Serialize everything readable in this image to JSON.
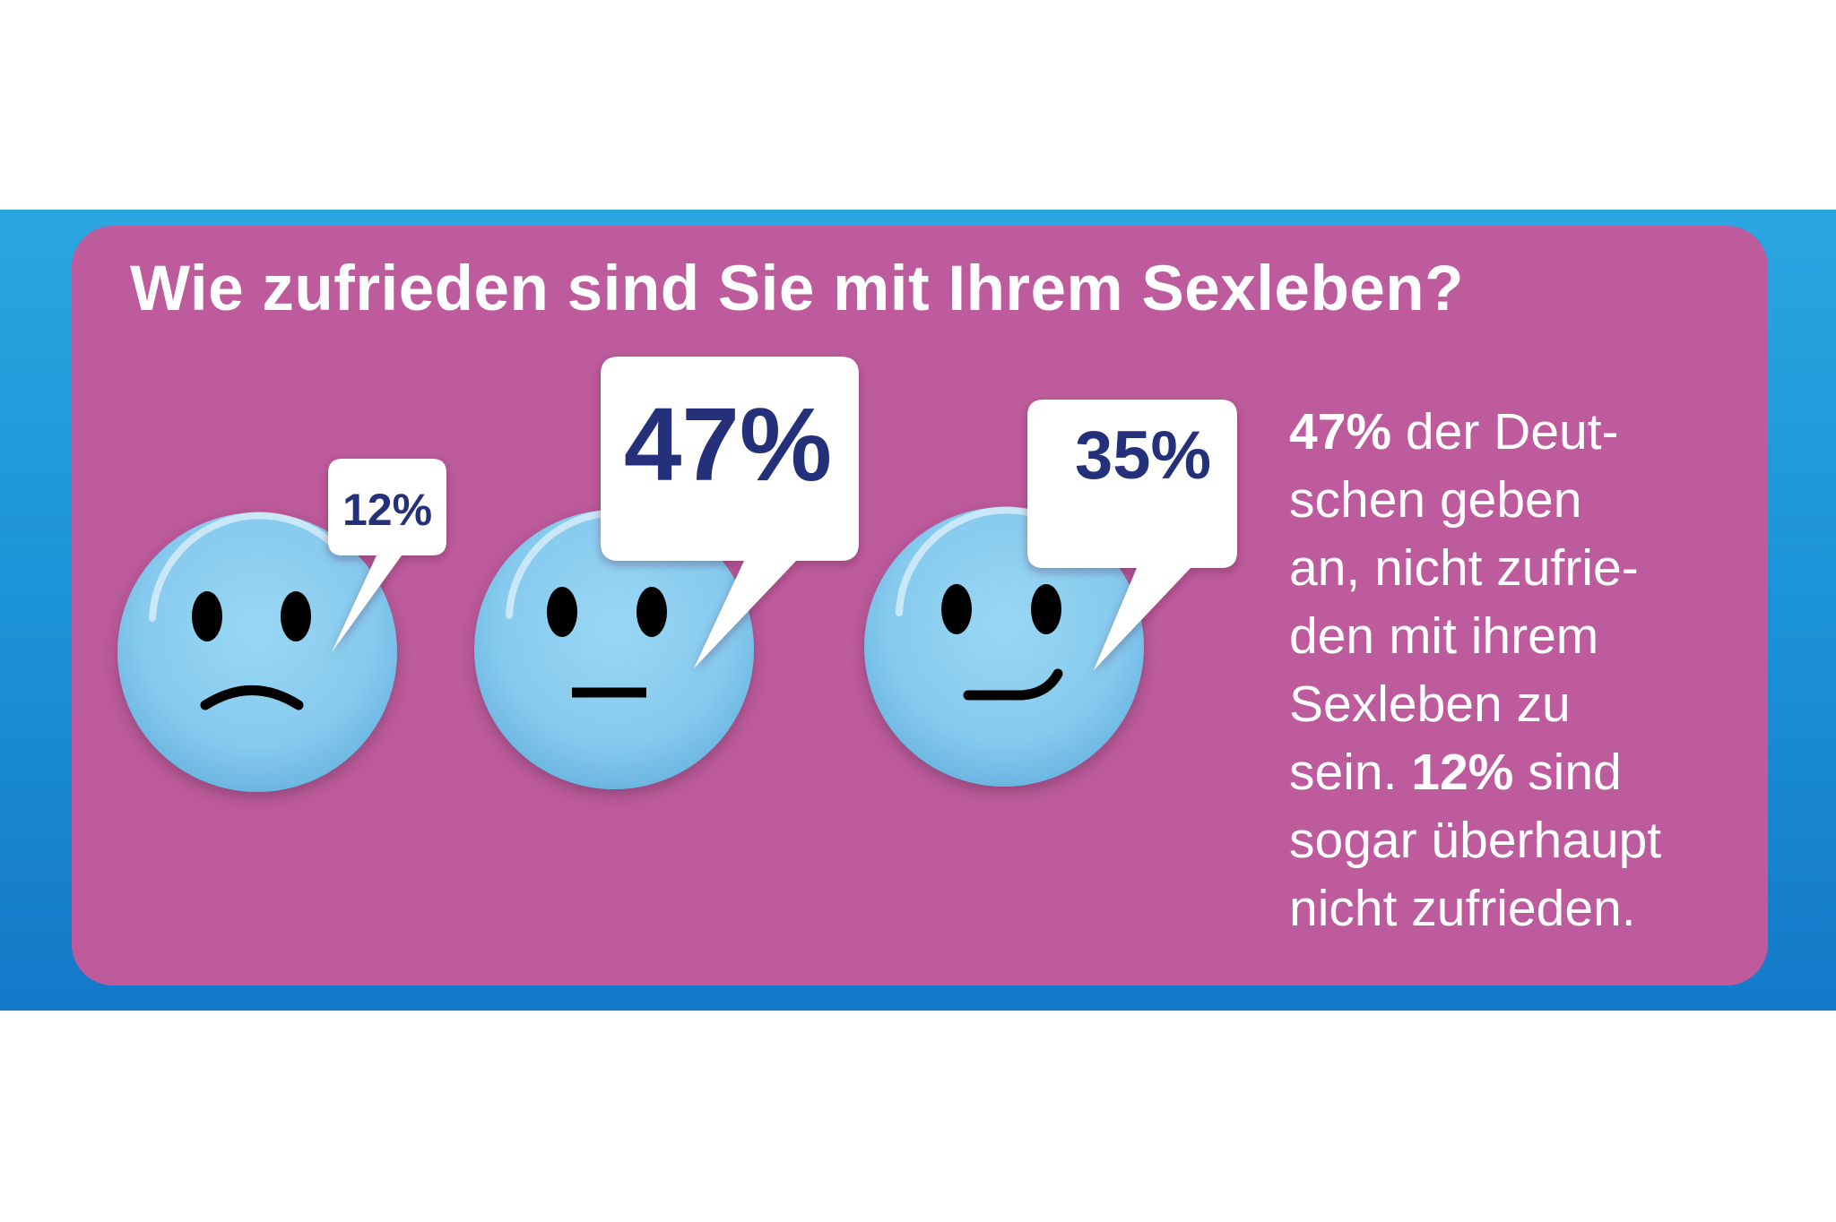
{
  "colors": {
    "band": "#1b90d6",
    "panel": "#bd5b9c",
    "face": "#87cbee",
    "bubble_text": "#24307a",
    "text": "#ffffff"
  },
  "chart_data": {
    "type": "pictogram",
    "title": "Wie zufrieden sind Sie mit Ihrem Sexleben?",
    "categories": [
      "nicht zufrieden (traurig)",
      "neutral",
      "zufrieden (lächelnd)"
    ],
    "values": [
      12,
      47,
      35
    ],
    "labels": [
      "12%",
      "47%",
      "35%"
    ],
    "unit": "%"
  },
  "statement": {
    "line1_value": "47%",
    "line1_text": " der Deut-",
    "line2": "schen geben",
    "line3": "an, nicht zufrie-",
    "line4": "den mit ihrem",
    "line5": "Sexleben zu",
    "line6_text": "sein. ",
    "line6_value": "12%",
    "line6_tail": " sind",
    "line7": "sogar überhaupt",
    "line8": "nicht zufrieden."
  }
}
